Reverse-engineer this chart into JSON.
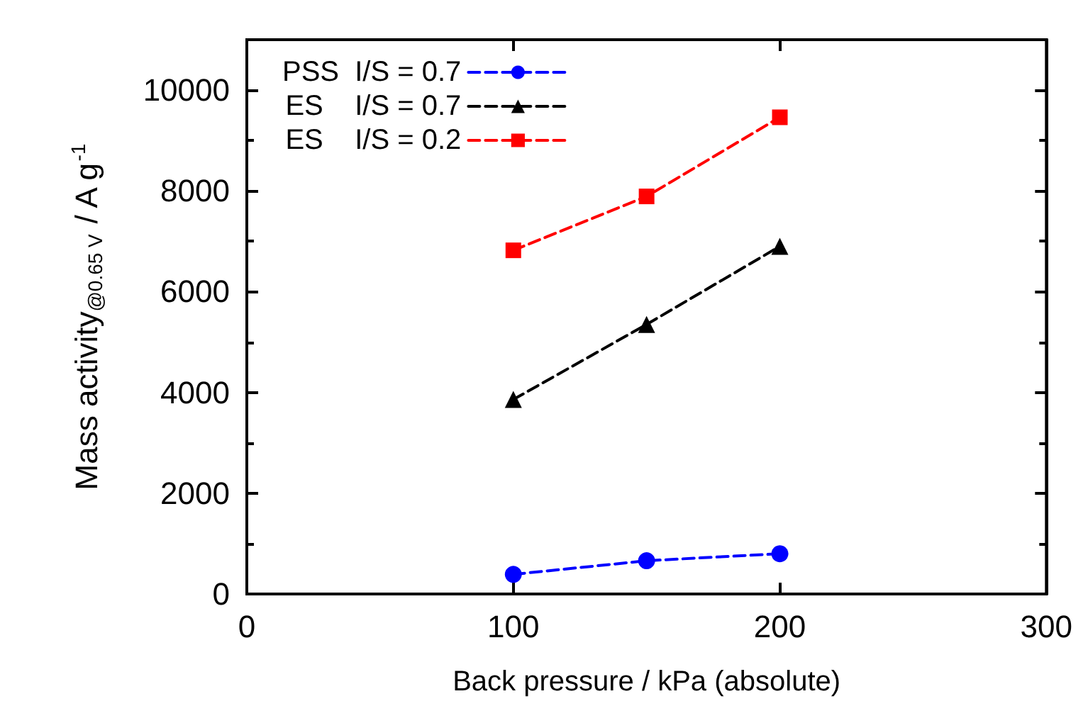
{
  "chart_data": {
    "type": "line",
    "xlabel": "Back pressure / kPa (absolute)",
    "ylabel": "Mass activity$_{@0.65 V}$ / A g$^{-1}$",
    "x": [
      100,
      150,
      200
    ],
    "series": [
      {
        "name": "PSS  I/S = 0.7",
        "color": "#0000ff",
        "marker": "circle",
        "values": [
          390,
          660,
          800
        ]
      },
      {
        "name": "ES    I/S = 0.7",
        "color": "#000000",
        "marker": "triangle",
        "values": [
          3860,
          5350,
          6900
        ]
      },
      {
        "name": "ES    I/S = 0.2",
        "color": "#ff0000",
        "marker": "square",
        "values": [
          6820,
          7890,
          9460
        ]
      }
    ],
    "line_style": "dashed",
    "xlim": [
      0,
      300
    ],
    "xticks": [
      0,
      100,
      200,
      300
    ],
    "ylim": [
      0,
      11000
    ],
    "yticks": [
      0,
      2000,
      4000,
      6000,
      8000,
      10000
    ],
    "grid": false,
    "legend": "top left"
  }
}
